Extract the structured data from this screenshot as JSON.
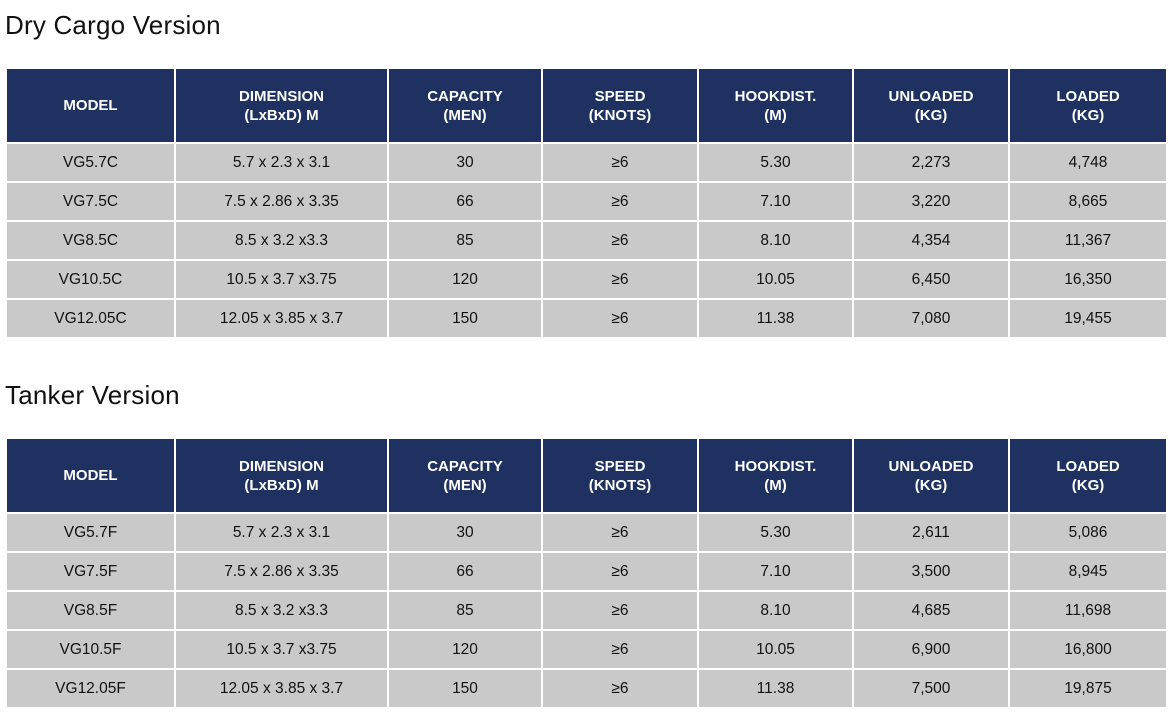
{
  "columns": [
    [
      "MODEL"
    ],
    [
      "DIMENSION",
      "(LxBxD) M"
    ],
    [
      "CAPACITY",
      "(MEN)"
    ],
    [
      "SPEED",
      "(KNOTS)"
    ],
    [
      "HOOKDIST.",
      "(M)"
    ],
    [
      "UNLOADED",
      "(KG)"
    ],
    [
      "LOADED",
      "(KG)"
    ]
  ],
  "tables": [
    {
      "title": "Dry Cargo Version",
      "rows": [
        [
          "VG5.7C",
          "5.7 x 2.3 x 3.1",
          "30",
          "≥6",
          "5.30",
          "2,273",
          "4,748"
        ],
        [
          "VG7.5C",
          "7.5 x 2.86 x 3.35",
          "66",
          "≥6",
          "7.10",
          "3,220",
          "8,665"
        ],
        [
          "VG8.5C",
          "8.5 x 3.2 x3.3",
          "85",
          "≥6",
          "8.10",
          "4,354",
          "11,367"
        ],
        [
          "VG10.5C",
          "10.5 x 3.7 x3.75",
          "120",
          "≥6",
          "10.05",
          "6,450",
          "16,350"
        ],
        [
          "VG12.05C",
          "12.05 x 3.85 x 3.7",
          "150",
          "≥6",
          "11.38",
          "7,080",
          "19,455"
        ]
      ]
    },
    {
      "title": "Tanker Version",
      "rows": [
        [
          "VG5.7F",
          "5.7 x 2.3 x 3.1",
          "30",
          "≥6",
          "5.30",
          "2,611",
          "5,086"
        ],
        [
          "VG7.5F",
          "7.5 x 2.86 x 3.35",
          "66",
          "≥6",
          "7.10",
          "3,500",
          "8,945"
        ],
        [
          "VG8.5F",
          "8.5 x 3.2 x3.3",
          "85",
          "≥6",
          "8.10",
          "4,685",
          "11,698"
        ],
        [
          "VG10.5F",
          "10.5 x 3.7 x3.75",
          "120",
          "≥6",
          "10.05",
          "6,900",
          "16,800"
        ],
        [
          "VG12.05F",
          "12.05 x 3.85 x 3.7",
          "150",
          "≥6",
          "11.38",
          "7,500",
          "19,875"
        ]
      ]
    }
  ]
}
